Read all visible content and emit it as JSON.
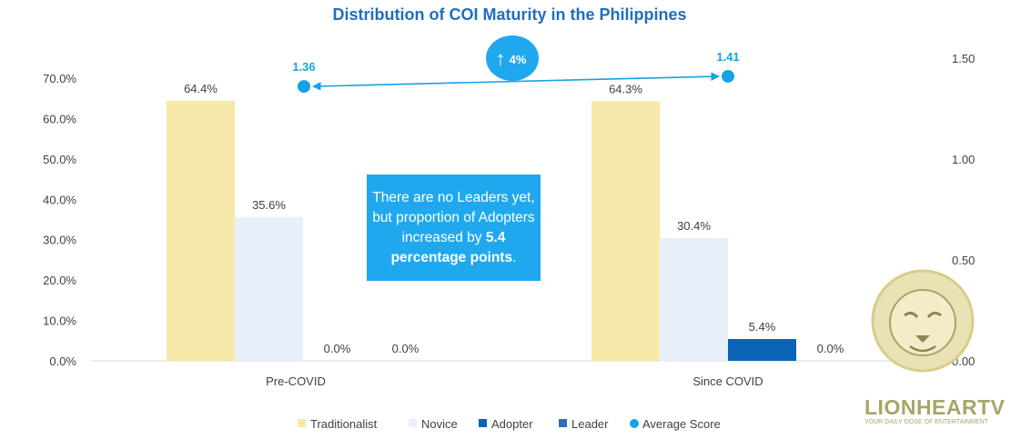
{
  "colors": {
    "title": "#1f6fbf",
    "axis_text": "#404040",
    "traditionalist": "#f7e9a9",
    "novice": "#e8f1fb",
    "adopter": "#0a63b7",
    "leader": "#2d6fb7",
    "average_score": "#14a3e6",
    "callout_bg": "#20a8ef",
    "watermark": "#a8a56b"
  },
  "callout": {
    "prefix": "There are no Leaders yet, but proportion of Adopters increased by ",
    "bold": "5.4 percentage points",
    "suffix": "."
  },
  "change_badge": {
    "arrow": "↑",
    "text": "4%",
    "icon": "up-arrow-icon"
  },
  "watermark": {
    "brand": "LIONHEARTV",
    "tagline": "YOUR DAILY DOSE OF ENTERTAINMENT"
  },
  "chart_data": {
    "type": "bar",
    "title": "Distribution of COI Maturity in the Philippines",
    "categories": [
      "Pre-COVID",
      "Since COVID"
    ],
    "series": [
      {
        "name": "Traditionalist",
        "values": [
          64.4,
          64.3
        ],
        "labels": [
          "64.4%",
          "64.3%"
        ]
      },
      {
        "name": "Novice",
        "values": [
          35.6,
          30.4
        ],
        "labels": [
          "35.6%",
          "30.4%"
        ]
      },
      {
        "name": "Adopter",
        "values": [
          0.0,
          5.4
        ],
        "labels": [
          "0.0%",
          "5.4%"
        ]
      },
      {
        "name": "Leader",
        "values": [
          0.0,
          0.0
        ],
        "labels": [
          "0.0%",
          "0.0%"
        ]
      }
    ],
    "line_series": {
      "name": "Average Score",
      "type": "scatter",
      "axis": "secondary",
      "values": [
        1.36,
        1.41
      ],
      "labels": [
        "1.36",
        "1.41"
      ]
    },
    "y_axis": {
      "ylim": [
        0,
        70
      ],
      "ticks": [
        "0.0%",
        "10.0%",
        "20.0%",
        "30.0%",
        "40.0%",
        "50.0%",
        "60.0%",
        "70.0%"
      ]
    },
    "y2_axis": {
      "ylim": [
        0,
        1.5
      ],
      "ticks": [
        "0.00",
        "0.50",
        "1.00",
        "1.50"
      ]
    },
    "grid": false,
    "legend_position": "bottom"
  }
}
